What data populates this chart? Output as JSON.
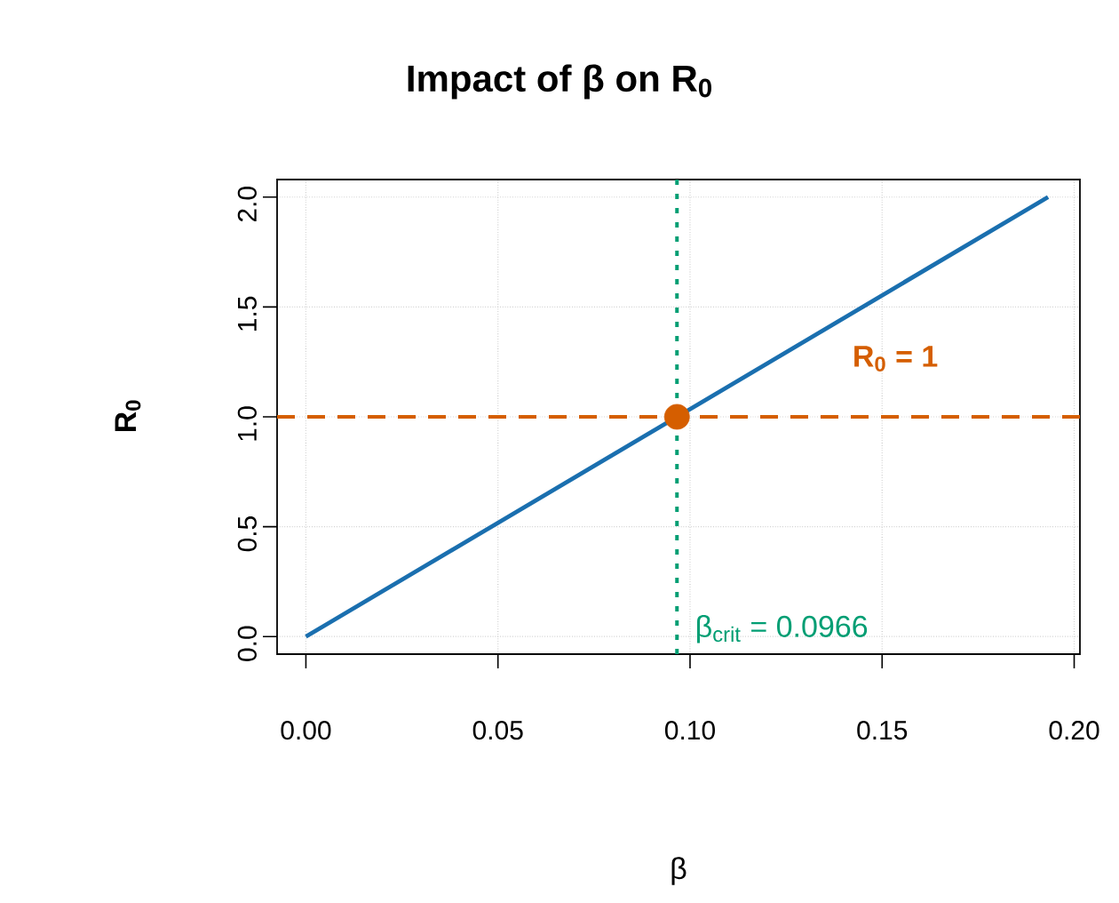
{
  "chart_data": {
    "type": "line",
    "title": "Impact of β on R$_{0}$",
    "xlabel": "β",
    "ylabel": "R$_{0}$",
    "xlim": [
      -0.0075,
      0.2015
    ],
    "ylim": [
      -0.08,
      2.08
    ],
    "xticks": [
      {
        "value": 0,
        "label": "0.00"
      },
      {
        "value": 0.05,
        "label": "0.05"
      },
      {
        "value": 0.1,
        "label": "0.10"
      },
      {
        "value": 0.15,
        "label": "0.15"
      },
      {
        "value": 0.2,
        "label": "0.20"
      }
    ],
    "yticks": [
      {
        "value": 0,
        "label": "0.0"
      },
      {
        "value": 0.5,
        "label": "0.5"
      },
      {
        "value": 1,
        "label": "1.0"
      },
      {
        "value": 1.5,
        "label": "1.5"
      },
      {
        "value": 2,
        "label": "2.0"
      }
    ],
    "grid": true,
    "series": [
      {
        "color": "#1a6faf",
        "x": [
          0,
          0.1932
        ],
        "values": [
          0,
          2.0
        ]
      },
      {
        "type": "scatter",
        "color": "#d55e00",
        "x": [
          0.0966
        ],
        "values": [
          1.0
        ]
      }
    ],
    "ref_lines": [
      {
        "axis": "y",
        "value": 1,
        "color": "#d55e00",
        "line_style": "dashed",
        "label": "R$_{0}$ = 1"
      },
      {
        "axis": "x",
        "value": 0.0966,
        "color": "#009e73",
        "line_style": "dotted",
        "label": "β$_{crit}$ = 0.0966"
      }
    ]
  }
}
